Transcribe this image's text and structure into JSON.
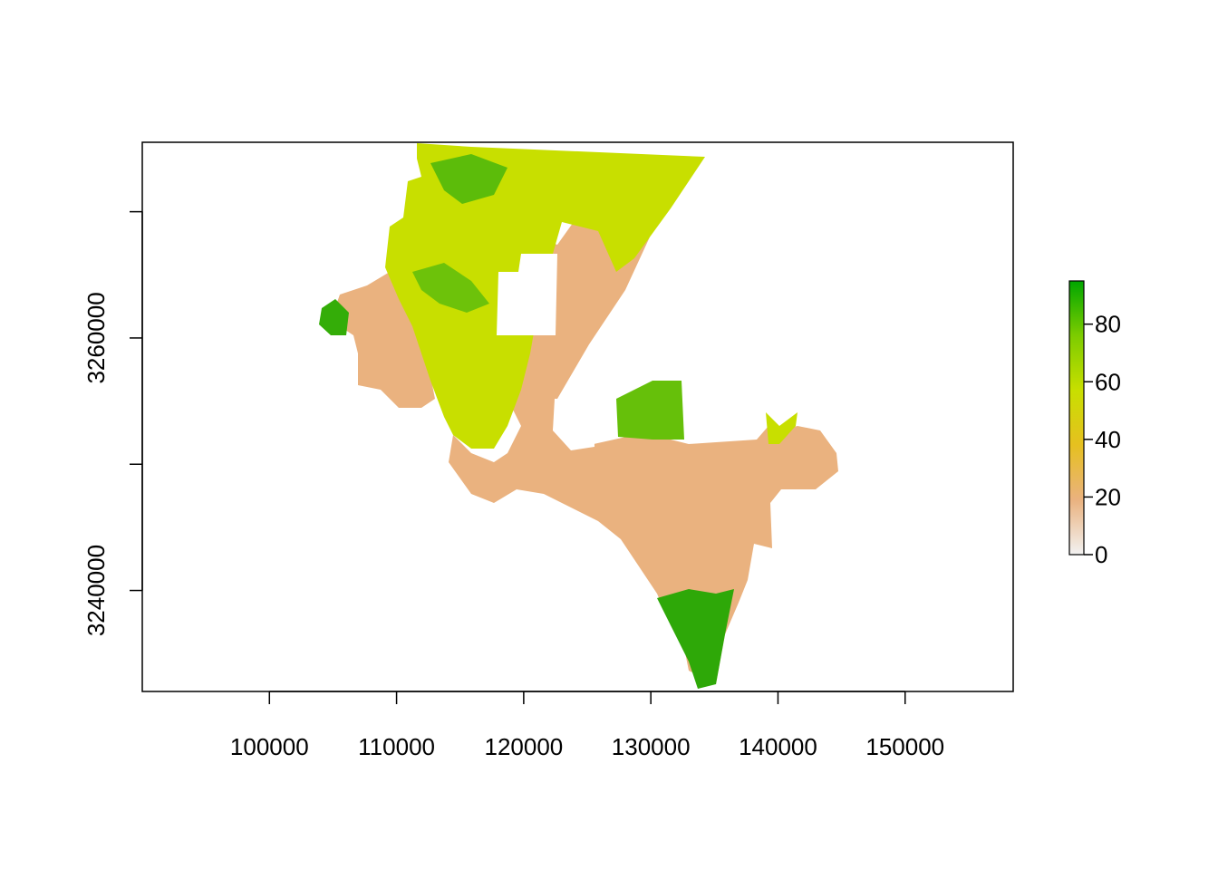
{
  "chart_data": {
    "type": "heatmap",
    "title": "",
    "xlabel": "",
    "ylabel": "",
    "x_ticks": [
      100000,
      110000,
      120000,
      130000,
      140000,
      150000
    ],
    "y_ticks_labeled": [
      3240000,
      3260000
    ],
    "y_ticks_unlabeled": [
      3250000,
      3270000
    ],
    "xlim": [
      90000,
      158500
    ],
    "ylim": [
      3232000,
      3275500
    ],
    "legend": {
      "placement": "right",
      "range": [
        0,
        95
      ],
      "ticks": [
        0,
        20,
        40,
        60,
        80
      ]
    },
    "color_scale": [
      "#f2f2f2",
      "#eab27f",
      "#e6c020",
      "#c8df00",
      "#7dcc00",
      "#00a600"
    ],
    "region_colors": {
      "low": "#eab27f",
      "mid": "#c8df00",
      "high": "#4fb80a"
    }
  }
}
